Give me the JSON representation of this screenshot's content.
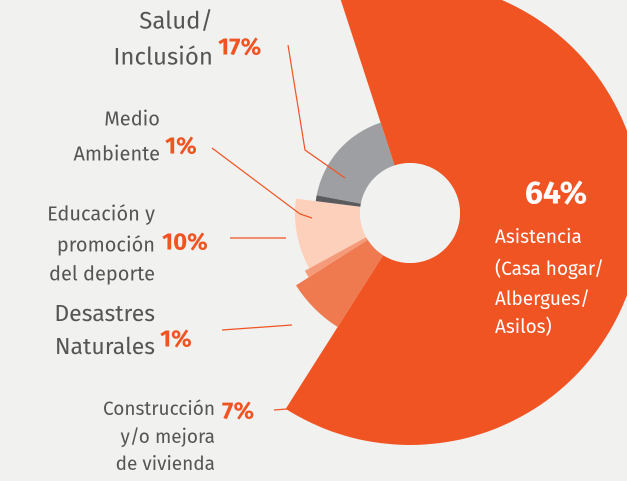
{
  "chart_data": {
    "type": "pie",
    "categories": [
      [
        "Asistencia",
        "(Casa hogar/",
        "Albergues/",
        "Asilos)"
      ],
      [
        "Construcción",
        "y/o mejora",
        "de vivienda"
      ],
      [
        "Desastres",
        "Naturales"
      ],
      [
        "Educación y",
        "promoción",
        "del deporte"
      ],
      [
        "Medio",
        "Ambiente"
      ],
      [
        "Salud/",
        "Inclusión"
      ]
    ],
    "values": [
      64,
      7,
      1,
      10,
      1,
      17
    ],
    "value_labels": [
      "64%",
      "7%",
      "1%",
      "10%",
      "1%",
      "17%"
    ],
    "colors": [
      "#f05423",
      "#f07a4f",
      "#f59b7a",
      "#fcd0bb",
      "#5b5b5d",
      "#9d9fa2"
    ]
  }
}
